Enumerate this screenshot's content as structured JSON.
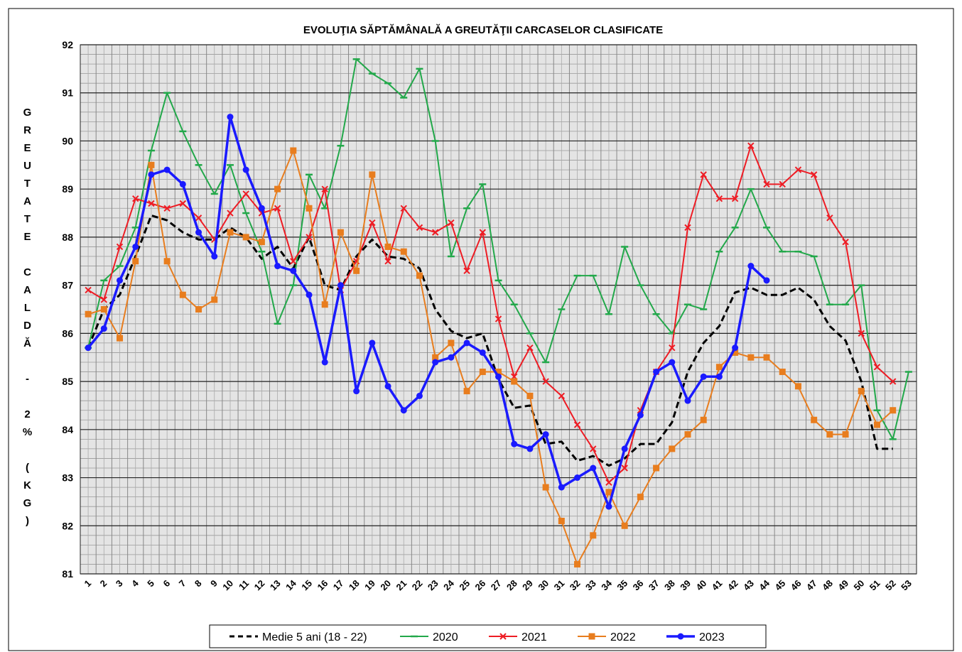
{
  "chart_data": {
    "type": "line",
    "title": "EVOLUŢIA SĂPTĂMÂNALĂ A GREUTĂŢII CARCASELOR CLASIFICATE",
    "y_label": "GREUTATE CALDĂ - 2% (KG)",
    "categories": [
      "1",
      "2",
      "3",
      "4",
      "5",
      "6",
      "7",
      "8",
      "9",
      "10",
      "11",
      "12",
      "13",
      "14",
      "15",
      "16",
      "17",
      "18",
      "19",
      "20",
      "21",
      "22",
      "23",
      "24",
      "25",
      "26",
      "27",
      "28",
      "29",
      "30",
      "31",
      "32",
      "33",
      "34",
      "35",
      "36",
      "37",
      "38",
      "39",
      "40",
      "41",
      "42",
      "43",
      "44",
      "45",
      "46",
      "47",
      "48",
      "49",
      "50",
      "51",
      "52",
      "53"
    ],
    "ylim": [
      81,
      92
    ],
    "yticks": [
      81,
      82,
      83,
      84,
      85,
      86,
      87,
      88,
      89,
      90,
      91,
      92
    ],
    "grid": true,
    "legend": "bottom",
    "series": [
      {
        "name": "Medie 5 ani (18 - 22)",
        "color": "#000000",
        "marker": "none",
        "dash": true,
        "values": [
          85.7,
          86.5,
          86.8,
          87.6,
          88.45,
          88.35,
          88.1,
          87.95,
          87.95,
          88.2,
          88.0,
          87.55,
          87.8,
          87.35,
          88.0,
          87.0,
          86.9,
          87.6,
          87.95,
          87.6,
          87.55,
          87.35,
          86.5,
          86.05,
          85.9,
          86.0,
          85.05,
          84.45,
          84.5,
          83.7,
          83.75,
          83.35,
          83.45,
          83.25,
          83.4,
          83.7,
          83.7,
          84.15,
          85.2,
          85.8,
          86.15,
          86.85,
          86.95,
          86.8,
          86.8,
          86.95,
          86.7,
          86.15,
          85.85,
          85.0,
          83.6,
          83.6,
          null
        ]
      },
      {
        "name": "2020",
        "color": "#22a84a",
        "marker": "dash",
        "values": [
          85.7,
          87.1,
          87.4,
          88.2,
          89.8,
          91.0,
          90.2,
          89.5,
          88.9,
          89.5,
          88.5,
          87.7,
          86.2,
          87.0,
          89.3,
          88.6,
          89.9,
          91.7,
          91.4,
          91.2,
          90.9,
          91.5,
          90.0,
          87.6,
          88.6,
          89.1,
          87.1,
          86.6,
          86.0,
          85.4,
          86.5,
          87.2,
          87.2,
          86.4,
          87.8,
          87.0,
          86.4,
          86.0,
          86.6,
          86.5,
          87.7,
          88.2,
          89.0,
          88.2,
          87.7,
          87.7,
          87.6,
          86.6,
          86.6,
          87.0,
          84.4,
          83.8,
          85.2
        ]
      },
      {
        "name": "2021",
        "color": "#ee1c24",
        "marker": "x",
        "values": [
          86.9,
          86.7,
          87.8,
          88.8,
          88.7,
          88.6,
          88.7,
          88.4,
          87.95,
          88.5,
          88.9,
          88.5,
          88.6,
          87.5,
          88.0,
          89.0,
          86.9,
          87.5,
          88.3,
          87.5,
          88.6,
          88.2,
          88.1,
          88.3,
          87.3,
          88.1,
          86.3,
          85.1,
          85.7,
          85.0,
          84.7,
          84.1,
          83.6,
          82.9,
          83.2,
          84.4,
          85.2,
          85.7,
          88.2,
          89.3,
          88.8,
          88.8,
          89.9,
          89.1,
          89.1,
          89.4,
          89.3,
          88.4,
          87.9,
          86.0,
          85.3,
          85.0,
          null
        ]
      },
      {
        "name": "2022",
        "color": "#e87d1e",
        "marker": "square",
        "values": [
          86.4,
          86.5,
          85.9,
          87.5,
          89.5,
          87.5,
          86.8,
          86.5,
          86.7,
          88.1,
          88.0,
          87.9,
          89.0,
          89.8,
          88.6,
          86.6,
          88.1,
          87.3,
          89.3,
          87.8,
          87.7,
          87.2,
          85.5,
          85.8,
          84.8,
          85.2,
          85.2,
          85.0,
          84.7,
          82.8,
          82.1,
          81.2,
          81.8,
          82.7,
          82.0,
          82.6,
          83.2,
          83.6,
          83.9,
          84.2,
          85.3,
          85.6,
          85.5,
          85.5,
          85.2,
          84.9,
          84.2,
          83.9,
          83.9,
          84.8,
          84.1,
          84.4,
          null
        ]
      },
      {
        "name": "2023",
        "color": "#1a1aff",
        "marker": "circle",
        "values": [
          85.7,
          86.1,
          87.1,
          87.8,
          89.3,
          89.4,
          89.1,
          88.1,
          87.6,
          90.5,
          89.4,
          88.6,
          87.4,
          87.3,
          86.8,
          85.4,
          87.0,
          84.8,
          85.8,
          84.9,
          84.4,
          84.7,
          85.4,
          85.5,
          85.8,
          85.6,
          85.1,
          83.7,
          83.6,
          83.9,
          82.8,
          83.0,
          83.2,
          82.4,
          83.6,
          84.3,
          85.2,
          85.4,
          84.6,
          85.1,
          85.1,
          85.7,
          87.4,
          87.1,
          null,
          null,
          null,
          null,
          null,
          null,
          null,
          null,
          null
        ]
      }
    ]
  }
}
